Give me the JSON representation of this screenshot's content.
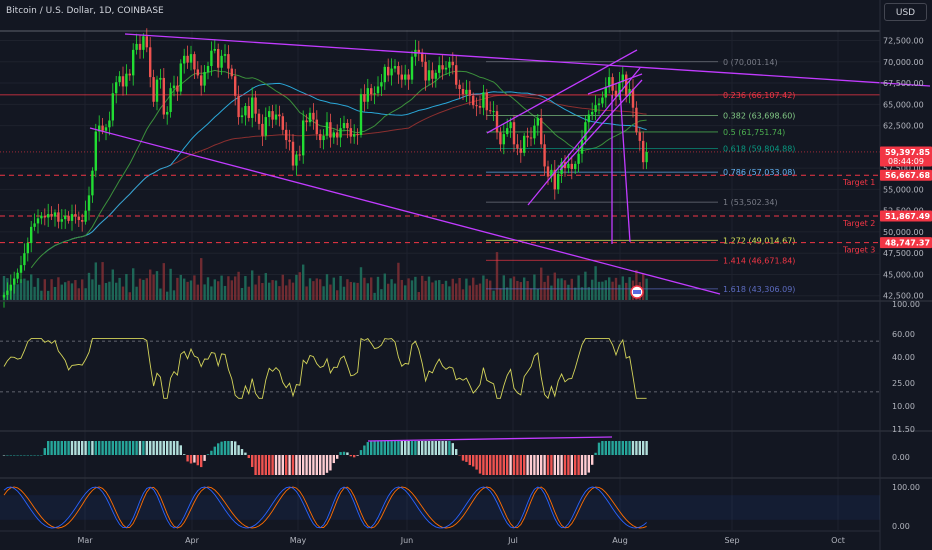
{
  "header": {
    "title": "Bitcoin / U.S. Dollar, 1D, COINBASE",
    "currency_button": "USD"
  },
  "colors": {
    "background": "#131722",
    "up": "#26a69a",
    "up_bright": "#22dd33",
    "down": "#ef5350",
    "channel": "#c13bff",
    "fib_line": "#787b86",
    "target": "#f23645",
    "rsi": "#d4d45a",
    "ma_blue": "#2aa7d8",
    "ma_green": "#3b8f3b",
    "ma_brown": "#8b2f2f",
    "stoch_k": "#2962ff",
    "stoch_d": "#ff6d00"
  },
  "chart_data": {
    "type": "candlestick",
    "symbol": "BTCUSD",
    "title": "Bitcoin / U.S. Dollar, 1D, COINBASE",
    "price_axis": {
      "ylim": [
        42000,
        73500
      ],
      "ticks": [
        42500,
        45000,
        47500,
        50000,
        52500,
        55000,
        57500,
        62500,
        65000,
        67500,
        70000,
        72500
      ],
      "tick_labels": [
        "42,500.00",
        "45,000.00",
        "47,500.00",
        "50,000.00",
        "52,500.00",
        "55,000.00",
        "57,500.00",
        "62,500.00",
        "65,000.00",
        "67,500.00",
        "70,000.00",
        "72,500.00"
      ]
    },
    "time_axis": {
      "labels": [
        "Mar",
        "Apr",
        "May",
        "Jun",
        "Jul",
        "Aug",
        "Sep",
        "Oct"
      ]
    },
    "price_labels": [
      {
        "value": 59397.85,
        "text": "59,397.85",
        "sub": "08:44:09",
        "kind": "last"
      },
      {
        "value": 56667.68,
        "text": "56,667.68",
        "kind": "level"
      },
      {
        "value": 51867.49,
        "text": "51,867.49",
        "kind": "level"
      },
      {
        "value": 48747.37,
        "text": "48,747.37",
        "kind": "level"
      }
    ],
    "fibonacci": [
      {
        "ratio": "0",
        "value": 70001.14,
        "label": "0 (70,001.14)",
        "color": "#787b86"
      },
      {
        "ratio": "0.236",
        "value": 66107.42,
        "label": "0.236 (66,107.42)",
        "color": "#f23645"
      },
      {
        "ratio": "0.382",
        "value": 63698.6,
        "label": "0.382 (63,698.60)",
        "color": "#81c784"
      },
      {
        "ratio": "0.5",
        "value": 61751.74,
        "label": "0.5 (61,751.74)",
        "color": "#4caf50"
      },
      {
        "ratio": "0.618",
        "value": 59804.88,
        "label": "0.618 (59,804.88)",
        "color": "#089981"
      },
      {
        "ratio": "0.786",
        "value": 57033.08,
        "label": "0.786 (57,033.08)",
        "color": "#64b5f6"
      },
      {
        "ratio": "1",
        "value": 53502.34,
        "label": "1 (53,502.34)",
        "color": "#787b86"
      },
      {
        "ratio": "1.272",
        "value": 49014.67,
        "label": "1.272 (49,014.67)",
        "color": "#d4e157"
      },
      {
        "ratio": "1.414",
        "value": 46671.84,
        "label": "1.414 (46,671.84)",
        "color": "#f23645"
      },
      {
        "ratio": "1.618",
        "value": 43306.09,
        "label": "1.618 (43,306.09)",
        "color": "#5c6bc0"
      }
    ],
    "targets": [
      {
        "name": "Target 1",
        "value": 56667.68
      },
      {
        "name": "Target 2",
        "value": 51867.49
      },
      {
        "name": "Target 3",
        "value": 48747.37
      }
    ],
    "closes": [
      42600,
      43100,
      43800,
      44500,
      45200,
      46100,
      47500,
      48700,
      50600,
      51000,
      51600,
      51900,
      51700,
      52100,
      51800,
      52300,
      51200,
      51500,
      51900,
      51300,
      52100,
      51800,
      51400,
      51200,
      52500,
      54300,
      57200,
      61800,
      62500,
      61900,
      62300,
      63100,
      66300,
      67600,
      68300,
      67100,
      68600,
      68400,
      71400,
      72100,
      71400,
      73000,
      71700,
      68200,
      65300,
      67900,
      68100,
      63800,
      64100,
      66900,
      67200,
      66500,
      69800,
      70700,
      69900,
      70900,
      69100,
      68400,
      67200,
      68800,
      69500,
      71300,
      71500,
      69300,
      70700,
      70900,
      69200,
      68300,
      66000,
      63500,
      63700,
      64800,
      63400,
      65800,
      63900,
      62700,
      61300,
      63500,
      64200,
      63200,
      63800,
      63600,
      62000,
      60800,
      60600,
      57800,
      59100,
      59000,
      63100,
      62900,
      64000,
      63200,
      61500,
      60800,
      61300,
      62900,
      61100,
      61700,
      61100,
      62200,
      62800,
      62200,
      61200,
      61500,
      61400,
      66200,
      65300,
      66900,
      66200,
      66300,
      67100,
      67600,
      69400,
      68400,
      69200,
      69500,
      68500,
      67900,
      68500,
      67900,
      70600,
      71400,
      71100,
      70000,
      67800,
      69000,
      68000,
      68700,
      69600,
      69100,
      69300,
      70000,
      69600,
      67300,
      66800,
      66200,
      66700,
      66000,
      64900,
      64800,
      64600,
      66400,
      64300,
      64200,
      64200,
      61700,
      60300,
      61500,
      62200,
      62900,
      60300,
      59800,
      59300,
      61300,
      61100,
      61000,
      62500,
      63400,
      60300,
      57700,
      56500,
      57300,
      55000,
      56800,
      58200,
      57500,
      58000,
      57400,
      58000,
      59200,
      60800,
      62900,
      63800,
      64100,
      64900,
      65100,
      65800,
      67000,
      68200,
      66600,
      65900,
      67600,
      68500,
      66000,
      66800,
      64600,
      61700,
      60700,
      58200,
      59397
    ],
    "rsi": {
      "name": "RSI",
      "ticks": [
        100,
        60,
        40,
        25,
        10
      ],
      "tick_labels": [
        "100.00",
        "60.00",
        "40.00",
        "25.00",
        "10.00"
      ],
      "upper": 70,
      "lower": 30,
      "last": 38
    },
    "macd": {
      "name": "MACD histogram",
      "ticks": [
        11.5,
        0,
        -11.5
      ],
      "tick_labels": [
        "11.50",
        "0.00",
        ""
      ]
    },
    "stochastic": {
      "name": "Stoch RSI",
      "ticks": [
        100,
        0
      ],
      "tick_labels": [
        "100.00",
        "0.00"
      ]
    }
  }
}
